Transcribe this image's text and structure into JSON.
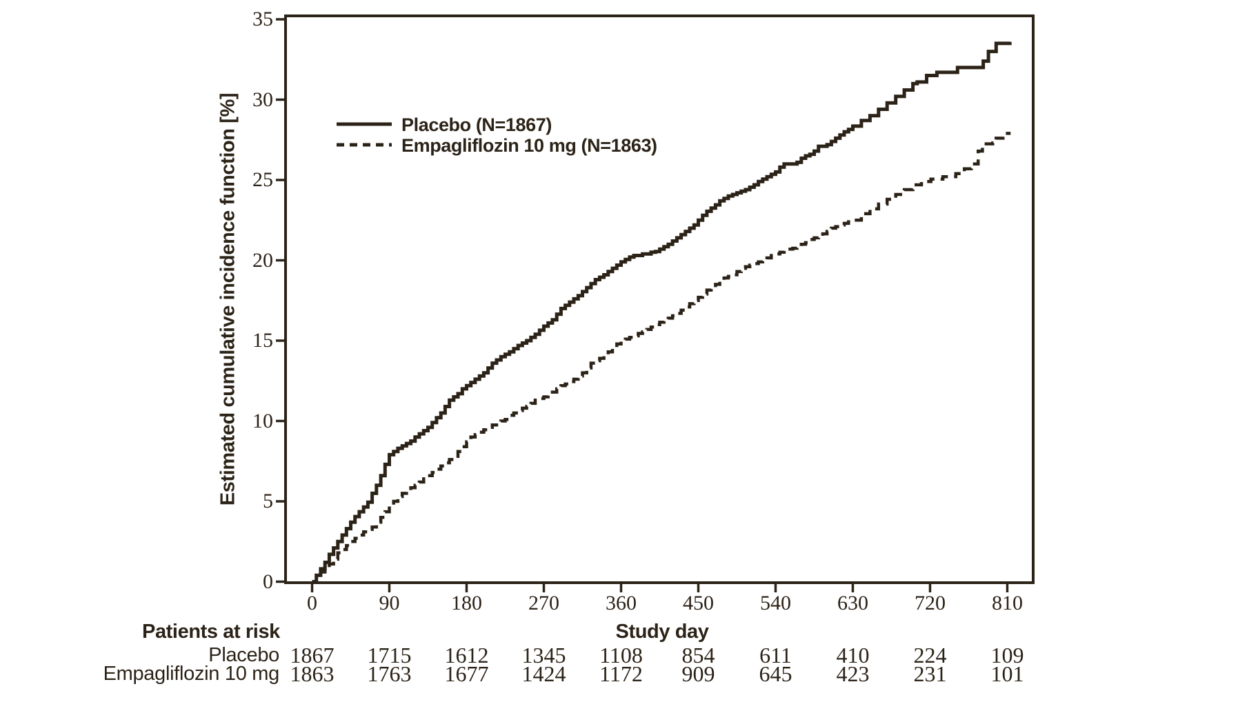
{
  "figure": {
    "background": "#ffffff",
    "ink_color": "#2c2318",
    "at_risk": {
      "header": "Patients at risk",
      "rows": [
        {
          "label": "Placebo",
          "counts": [
            1867,
            1715,
            1612,
            1345,
            1108,
            854,
            611,
            410,
            224,
            109
          ]
        },
        {
          "label": "Empagliflozin 10 mg",
          "counts": [
            1863,
            1763,
            1677,
            1424,
            1172,
            909,
            645,
            423,
            231,
            101
          ]
        }
      ]
    }
  },
  "chart_data": {
    "type": "line",
    "subtype": "step-cumulative-incidence",
    "title": "",
    "xlabel": "Study day",
    "ylabel": "Estimated cumulative incidence function [%]",
    "xlim": [
      0,
      840
    ],
    "ylim": [
      0,
      35
    ],
    "x_ticks": [
      0,
      90,
      180,
      270,
      360,
      450,
      540,
      630,
      720,
      810
    ],
    "y_ticks": [
      0,
      5,
      10,
      15,
      20,
      25,
      30,
      35
    ],
    "grid": false,
    "legend_position": "upper-left-inside",
    "series": [
      {
        "name": "Placebo (N=1867)",
        "style": "solid",
        "points": [
          [
            0,
            0
          ],
          [
            5,
            0.4
          ],
          [
            10,
            0.8
          ],
          [
            15,
            1.2
          ],
          [
            20,
            1.7
          ],
          [
            25,
            2.1
          ],
          [
            30,
            2.5
          ],
          [
            35,
            2.9
          ],
          [
            40,
            3.3
          ],
          [
            45,
            3.7
          ],
          [
            50,
            4.05
          ],
          [
            55,
            4.35
          ],
          [
            60,
            4.65
          ],
          [
            65,
            4.95
          ],
          [
            70,
            5.5
          ],
          [
            75,
            6.0
          ],
          [
            80,
            6.6
          ],
          [
            85,
            7.3
          ],
          [
            90,
            7.9
          ],
          [
            95,
            8.1
          ],
          [
            100,
            8.3
          ],
          [
            105,
            8.45
          ],
          [
            110,
            8.6
          ],
          [
            115,
            8.75
          ],
          [
            120,
            9.0
          ],
          [
            125,
            9.2
          ],
          [
            130,
            9.4
          ],
          [
            135,
            9.6
          ],
          [
            140,
            9.9
          ],
          [
            145,
            10.2
          ],
          [
            150,
            10.5
          ],
          [
            155,
            10.9
          ],
          [
            160,
            11.3
          ],
          [
            165,
            11.5
          ],
          [
            170,
            11.7
          ],
          [
            175,
            12.0
          ],
          [
            180,
            12.2
          ],
          [
            185,
            12.4
          ],
          [
            190,
            12.6
          ],
          [
            195,
            12.8
          ],
          [
            200,
            13.0
          ],
          [
            205,
            13.3
          ],
          [
            210,
            13.6
          ],
          [
            215,
            13.8
          ],
          [
            220,
            14.0
          ],
          [
            225,
            14.15
          ],
          [
            230,
            14.3
          ],
          [
            235,
            14.5
          ],
          [
            240,
            14.7
          ],
          [
            245,
            14.85
          ],
          [
            250,
            15.0
          ],
          [
            255,
            15.2
          ],
          [
            260,
            15.4
          ],
          [
            265,
            15.65
          ],
          [
            270,
            15.9
          ],
          [
            275,
            16.1
          ],
          [
            280,
            16.3
          ],
          [
            285,
            16.65
          ],
          [
            290,
            17.0
          ],
          [
            295,
            17.2
          ],
          [
            300,
            17.4
          ],
          [
            305,
            17.6
          ],
          [
            310,
            17.8
          ],
          [
            315,
            18.05
          ],
          [
            320,
            18.3
          ],
          [
            325,
            18.55
          ],
          [
            330,
            18.8
          ],
          [
            335,
            18.95
          ],
          [
            340,
            19.1
          ],
          [
            345,
            19.3
          ],
          [
            350,
            19.5
          ],
          [
            355,
            19.7
          ],
          [
            360,
            19.9
          ],
          [
            365,
            20.05
          ],
          [
            370,
            20.2
          ],
          [
            375,
            20.3
          ],
          [
            385,
            20.4
          ],
          [
            395,
            20.5
          ],
          [
            400,
            20.55
          ],
          [
            405,
            20.7
          ],
          [
            410,
            20.85
          ],
          [
            415,
            21.0
          ],
          [
            420,
            21.2
          ],
          [
            425,
            21.4
          ],
          [
            430,
            21.6
          ],
          [
            435,
            21.8
          ],
          [
            440,
            22.0
          ],
          [
            445,
            22.2
          ],
          [
            450,
            22.5
          ],
          [
            455,
            22.8
          ],
          [
            460,
            23.05
          ],
          [
            465,
            23.25
          ],
          [
            470,
            23.45
          ],
          [
            475,
            23.7
          ],
          [
            480,
            23.85
          ],
          [
            485,
            24.0
          ],
          [
            490,
            24.1
          ],
          [
            495,
            24.2
          ],
          [
            500,
            24.3
          ],
          [
            505,
            24.4
          ],
          [
            510,
            24.55
          ],
          [
            515,
            24.7
          ],
          [
            520,
            24.9
          ],
          [
            525,
            25.05
          ],
          [
            530,
            25.2
          ],
          [
            535,
            25.35
          ],
          [
            540,
            25.5
          ],
          [
            545,
            25.8
          ],
          [
            550,
            26.0
          ],
          [
            565,
            26.1
          ],
          [
            570,
            26.35
          ],
          [
            575,
            26.5
          ],
          [
            580,
            26.6
          ],
          [
            585,
            26.8
          ],
          [
            590,
            27.1
          ],
          [
            600,
            27.2
          ],
          [
            605,
            27.4
          ],
          [
            610,
            27.6
          ],
          [
            615,
            27.8
          ],
          [
            620,
            28.0
          ],
          [
            625,
            28.15
          ],
          [
            630,
            28.35
          ],
          [
            640,
            28.7
          ],
          [
            650,
            29.0
          ],
          [
            660,
            29.4
          ],
          [
            670,
            29.8
          ],
          [
            680,
            30.2
          ],
          [
            690,
            30.6
          ],
          [
            700,
            31.0
          ],
          [
            705,
            31.1
          ],
          [
            716,
            31.5
          ],
          [
            728,
            31.7
          ],
          [
            752,
            32.0
          ],
          [
            782,
            32.4
          ],
          [
            788,
            33.0
          ],
          [
            797,
            33.5
          ],
          [
            813,
            33.6
          ]
        ]
      },
      {
        "name": "Empagliflozin 10 mg (N=1863)",
        "style": "dashed",
        "points": [
          [
            0,
            0
          ],
          [
            5,
            0.3
          ],
          [
            10,
            0.6
          ],
          [
            15,
            0.85
          ],
          [
            20,
            1.1
          ],
          [
            25,
            1.4
          ],
          [
            30,
            1.8
          ],
          [
            35,
            2.0
          ],
          [
            40,
            2.25
          ],
          [
            45,
            2.5
          ],
          [
            50,
            2.7
          ],
          [
            55,
            2.9
          ],
          [
            60,
            3.1
          ],
          [
            65,
            3.25
          ],
          [
            70,
            3.4
          ],
          [
            75,
            3.7
          ],
          [
            80,
            4.0
          ],
          [
            85,
            4.35
          ],
          [
            90,
            4.7
          ],
          [
            95,
            5.0
          ],
          [
            100,
            5.3
          ],
          [
            105,
            5.5
          ],
          [
            110,
            5.7
          ],
          [
            115,
            5.85
          ],
          [
            120,
            6.0
          ],
          [
            125,
            6.2
          ],
          [
            130,
            6.4
          ],
          [
            135,
            6.6
          ],
          [
            140,
            6.8
          ],
          [
            145,
            7.0
          ],
          [
            150,
            7.2
          ],
          [
            155,
            7.4
          ],
          [
            160,
            7.6
          ],
          [
            165,
            7.8
          ],
          [
            170,
            8.1
          ],
          [
            175,
            8.4
          ],
          [
            180,
            8.7
          ],
          [
            185,
            9.0
          ],
          [
            190,
            9.15
          ],
          [
            195,
            9.3
          ],
          [
            200,
            9.45
          ],
          [
            205,
            9.6
          ],
          [
            210,
            9.75
          ],
          [
            215,
            9.9
          ],
          [
            220,
            10.0
          ],
          [
            225,
            10.1
          ],
          [
            230,
            10.35
          ],
          [
            235,
            10.5
          ],
          [
            240,
            10.65
          ],
          [
            245,
            10.8
          ],
          [
            250,
            10.9
          ],
          [
            255,
            11.1
          ],
          [
            260,
            11.3
          ],
          [
            265,
            11.4
          ],
          [
            270,
            11.5
          ],
          [
            275,
            11.65
          ],
          [
            280,
            11.8
          ],
          [
            285,
            12.0
          ],
          [
            290,
            12.2
          ],
          [
            295,
            12.3
          ],
          [
            300,
            12.45
          ],
          [
            305,
            12.6
          ],
          [
            310,
            12.8
          ],
          [
            315,
            13.0
          ],
          [
            320,
            13.3
          ],
          [
            325,
            13.6
          ],
          [
            330,
            13.75
          ],
          [
            335,
            13.9
          ],
          [
            340,
            14.1
          ],
          [
            345,
            14.3
          ],
          [
            350,
            14.55
          ],
          [
            355,
            14.8
          ],
          [
            360,
            15.0
          ],
          [
            365,
            15.1
          ],
          [
            370,
            15.2
          ],
          [
            375,
            15.3
          ],
          [
            380,
            15.45
          ],
          [
            385,
            15.55
          ],
          [
            390,
            15.7
          ],
          [
            395,
            15.85
          ],
          [
            400,
            16.0
          ],
          [
            405,
            16.15
          ],
          [
            410,
            16.3
          ],
          [
            415,
            16.4
          ],
          [
            420,
            16.55
          ],
          [
            425,
            16.7
          ],
          [
            430,
            16.9
          ],
          [
            435,
            17.1
          ],
          [
            440,
            17.3
          ],
          [
            445,
            17.5
          ],
          [
            450,
            17.7
          ],
          [
            455,
            17.9
          ],
          [
            460,
            18.15
          ],
          [
            465,
            18.3
          ],
          [
            470,
            18.5
          ],
          [
            475,
            18.7
          ],
          [
            480,
            18.9
          ],
          [
            485,
            19.0
          ],
          [
            490,
            19.1
          ],
          [
            495,
            19.3
          ],
          [
            500,
            19.5
          ],
          [
            505,
            19.6
          ],
          [
            510,
            19.7
          ],
          [
            515,
            19.8
          ],
          [
            520,
            19.9
          ],
          [
            525,
            20.0
          ],
          [
            530,
            20.15
          ],
          [
            535,
            20.3
          ],
          [
            540,
            20.4
          ],
          [
            545,
            20.5
          ],
          [
            550,
            20.6
          ],
          [
            555,
            20.7
          ],
          [
            560,
            20.75
          ],
          [
            565,
            20.85
          ],
          [
            570,
            21.0
          ],
          [
            575,
            21.1
          ],
          [
            580,
            21.3
          ],
          [
            585,
            21.4
          ],
          [
            590,
            21.5
          ],
          [
            595,
            21.65
          ],
          [
            600,
            21.8
          ],
          [
            605,
            22.0
          ],
          [
            610,
            22.1
          ],
          [
            615,
            22.2
          ],
          [
            620,
            22.3
          ],
          [
            625,
            22.4
          ],
          [
            630,
            22.5
          ],
          [
            640,
            22.9
          ],
          [
            650,
            23.2
          ],
          [
            660,
            23.5
          ],
          [
            670,
            23.8
          ],
          [
            680,
            24.1
          ],
          [
            690,
            24.4
          ],
          [
            700,
            24.7
          ],
          [
            710,
            24.9
          ],
          [
            721,
            25.05
          ],
          [
            735,
            25.2
          ],
          [
            750,
            25.4
          ],
          [
            760,
            25.7
          ],
          [
            768,
            26.0
          ],
          [
            776,
            26.8
          ],
          [
            781,
            27.25
          ],
          [
            793,
            27.3
          ],
          [
            797,
            27.6
          ],
          [
            805,
            27.9
          ],
          [
            812,
            28.0
          ]
        ]
      }
    ],
    "at_risk_days": [
      0,
      90,
      180,
      270,
      360,
      450,
      540,
      630,
      720,
      810
    ]
  }
}
